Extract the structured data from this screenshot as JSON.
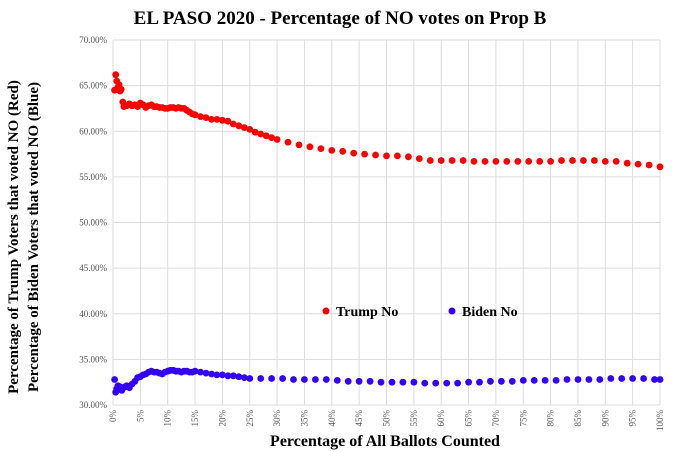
{
  "chart_data": {
    "type": "scatter",
    "title": "EL PASO 2020 - Percentage of NO votes on Prop B",
    "xlabel": "Percentage of All Ballots Counted",
    "ylabel_lines": [
      "Percentage of Trump Voters that voted NO (Red)",
      "Percentage of Biden Voters that voted NO (Blue)"
    ],
    "xlim": [
      0,
      100
    ],
    "ylim": [
      30,
      70
    ],
    "x_ticks": [
      "0%",
      "5%",
      "10%",
      "15%",
      "20%",
      "25%",
      "30%",
      "35%",
      "40%",
      "45%",
      "50%",
      "55%",
      "60%",
      "65%",
      "70%",
      "75%",
      "80%",
      "85%",
      "90%",
      "95%",
      "100%"
    ],
    "y_ticks": [
      "30.00%",
      "35.00%",
      "40.00%",
      "45.00%",
      "50.00%",
      "55.00%",
      "60.00%",
      "65.00%",
      "70.00%"
    ],
    "grid": true,
    "legend_position": "center",
    "series": [
      {
        "name": "Trump No",
        "color": "#ff0000",
        "points": [
          [
            0.3,
            64.5
          ],
          [
            0.5,
            66.2
          ],
          [
            0.7,
            65.5
          ],
          [
            0.9,
            64.8
          ],
          [
            1.1,
            65.1
          ],
          [
            1.3,
            64.4
          ],
          [
            1.5,
            64.6
          ],
          [
            1.8,
            63.2
          ],
          [
            2.0,
            62.7
          ],
          [
            2.5,
            62.8
          ],
          [
            3.0,
            63.0
          ],
          [
            3.5,
            62.8
          ],
          [
            4.0,
            62.9
          ],
          [
            4.5,
            62.7
          ],
          [
            5.0,
            63.1
          ],
          [
            5.5,
            62.9
          ],
          [
            6.0,
            62.6
          ],
          [
            6.5,
            62.8
          ],
          [
            7.0,
            62.9
          ],
          [
            7.5,
            62.7
          ],
          [
            8.0,
            62.7
          ],
          [
            8.5,
            62.6
          ],
          [
            9.0,
            62.6
          ],
          [
            9.5,
            62.5
          ],
          [
            10,
            62.5
          ],
          [
            10.5,
            62.6
          ],
          [
            11,
            62.6
          ],
          [
            11.5,
            62.5
          ],
          [
            12,
            62.6
          ],
          [
            12.5,
            62.5
          ],
          [
            13,
            62.5
          ],
          [
            13.5,
            62.3
          ],
          [
            14,
            62.1
          ],
          [
            14.5,
            61.9
          ],
          [
            15,
            61.8
          ],
          [
            16,
            61.6
          ],
          [
            17,
            61.5
          ],
          [
            18,
            61.3
          ],
          [
            19,
            61.3
          ],
          [
            20,
            61.2
          ],
          [
            21,
            61.1
          ],
          [
            22,
            60.8
          ],
          [
            23,
            60.6
          ],
          [
            24,
            60.4
          ],
          [
            25,
            60.2
          ],
          [
            26,
            59.9
          ],
          [
            27,
            59.7
          ],
          [
            28,
            59.5
          ],
          [
            29,
            59.3
          ],
          [
            30,
            59.1
          ],
          [
            32,
            58.8
          ],
          [
            34,
            58.5
          ],
          [
            36,
            58.3
          ],
          [
            38,
            58.1
          ],
          [
            40,
            57.9
          ],
          [
            42,
            57.8
          ],
          [
            44,
            57.6
          ],
          [
            46,
            57.5
          ],
          [
            48,
            57.4
          ],
          [
            50,
            57.3
          ],
          [
            52,
            57.3
          ],
          [
            54,
            57.2
          ],
          [
            56,
            57.0
          ],
          [
            58,
            56.8
          ],
          [
            60,
            56.8
          ],
          [
            62,
            56.8
          ],
          [
            64,
            56.8
          ],
          [
            66,
            56.7
          ],
          [
            68,
            56.7
          ],
          [
            70,
            56.7
          ],
          [
            72,
            56.7
          ],
          [
            74,
            56.7
          ],
          [
            76,
            56.7
          ],
          [
            78,
            56.7
          ],
          [
            80,
            56.7
          ],
          [
            82,
            56.8
          ],
          [
            84,
            56.8
          ],
          [
            86,
            56.8
          ],
          [
            88,
            56.8
          ],
          [
            90,
            56.7
          ],
          [
            92,
            56.7
          ],
          [
            94,
            56.5
          ],
          [
            96,
            56.4
          ],
          [
            98,
            56.3
          ],
          [
            100,
            56.1
          ]
        ]
      },
      {
        "name": "Biden No",
        "color": "#3300ff",
        "points": [
          [
            0.3,
            32.8
          ],
          [
            0.5,
            31.4
          ],
          [
            0.7,
            31.8
          ],
          [
            0.9,
            32.1
          ],
          [
            1.1,
            31.7
          ],
          [
            1.3,
            32.0
          ],
          [
            1.6,
            31.6
          ],
          [
            1.9,
            31.9
          ],
          [
            2.2,
            32.0
          ],
          [
            2.5,
            32.1
          ],
          [
            3.0,
            31.9
          ],
          [
            3.5,
            32.3
          ],
          [
            4.0,
            32.6
          ],
          [
            4.5,
            33.0
          ],
          [
            5.0,
            33.1
          ],
          [
            5.5,
            33.3
          ],
          [
            6.0,
            33.4
          ],
          [
            6.5,
            33.6
          ],
          [
            7.0,
            33.7
          ],
          [
            7.5,
            33.6
          ],
          [
            8.0,
            33.6
          ],
          [
            8.5,
            33.5
          ],
          [
            9.0,
            33.4
          ],
          [
            9.5,
            33.6
          ],
          [
            10,
            33.7
          ],
          [
            10.5,
            33.8
          ],
          [
            11,
            33.8
          ],
          [
            11.5,
            33.7
          ],
          [
            12,
            33.7
          ],
          [
            12.5,
            33.6
          ],
          [
            13,
            33.7
          ],
          [
            13.5,
            33.7
          ],
          [
            14,
            33.6
          ],
          [
            14.5,
            33.6
          ],
          [
            15,
            33.7
          ],
          [
            16,
            33.6
          ],
          [
            17,
            33.5
          ],
          [
            18,
            33.4
          ],
          [
            19,
            33.3
          ],
          [
            20,
            33.3
          ],
          [
            21,
            33.2
          ],
          [
            22,
            33.2
          ],
          [
            23,
            33.1
          ],
          [
            24,
            33.0
          ],
          [
            25,
            32.9
          ],
          [
            27,
            32.9
          ],
          [
            29,
            32.9
          ],
          [
            31,
            32.9
          ],
          [
            33,
            32.8
          ],
          [
            35,
            32.8
          ],
          [
            37,
            32.8
          ],
          [
            39,
            32.8
          ],
          [
            41,
            32.7
          ],
          [
            43,
            32.6
          ],
          [
            45,
            32.6
          ],
          [
            47,
            32.6
          ],
          [
            49,
            32.5
          ],
          [
            51,
            32.5
          ],
          [
            53,
            32.5
          ],
          [
            55,
            32.5
          ],
          [
            57,
            32.4
          ],
          [
            59,
            32.4
          ],
          [
            61,
            32.4
          ],
          [
            63,
            32.4
          ],
          [
            65,
            32.5
          ],
          [
            67,
            32.5
          ],
          [
            69,
            32.6
          ],
          [
            71,
            32.6
          ],
          [
            73,
            32.6
          ],
          [
            75,
            32.7
          ],
          [
            77,
            32.7
          ],
          [
            79,
            32.7
          ],
          [
            81,
            32.7
          ],
          [
            83,
            32.8
          ],
          [
            85,
            32.8
          ],
          [
            87,
            32.8
          ],
          [
            89,
            32.8
          ],
          [
            91,
            32.9
          ],
          [
            93,
            32.9
          ],
          [
            95,
            32.9
          ],
          [
            97,
            32.9
          ],
          [
            99,
            32.8
          ],
          [
            100,
            32.8
          ]
        ]
      }
    ]
  }
}
